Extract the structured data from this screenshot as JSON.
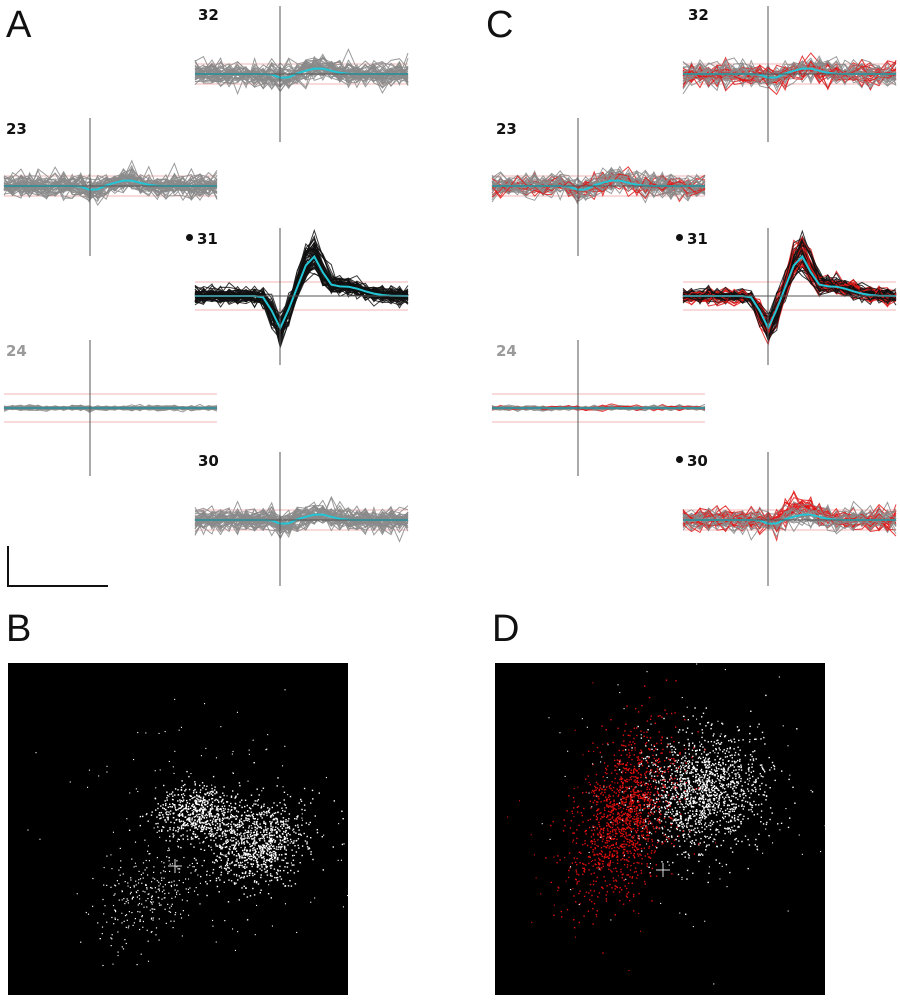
{
  "panels": {
    "a": {
      "letter": "A"
    },
    "b": {
      "letter": "B"
    },
    "c": {
      "letter": "C"
    },
    "d": {
      "letter": "D"
    }
  },
  "channels": {
    "a_32": "32",
    "a_23": "23",
    "a_31": "31",
    "a_24": "24",
    "a_30": "30",
    "c_32": "32",
    "c_23": "23",
    "c_31": "31",
    "c_24": "24",
    "c_30": "30"
  },
  "colors": {
    "grey_trace": "#8a8a8a",
    "black_trace": "#111111",
    "red_trace": "#e01818",
    "mean_trace": "#22c6d6",
    "threshold": "#f2b6b6",
    "scatter_bg": "#000000",
    "scatter_white": "#ffffff",
    "scatter_red": "#e01010"
  }
}
